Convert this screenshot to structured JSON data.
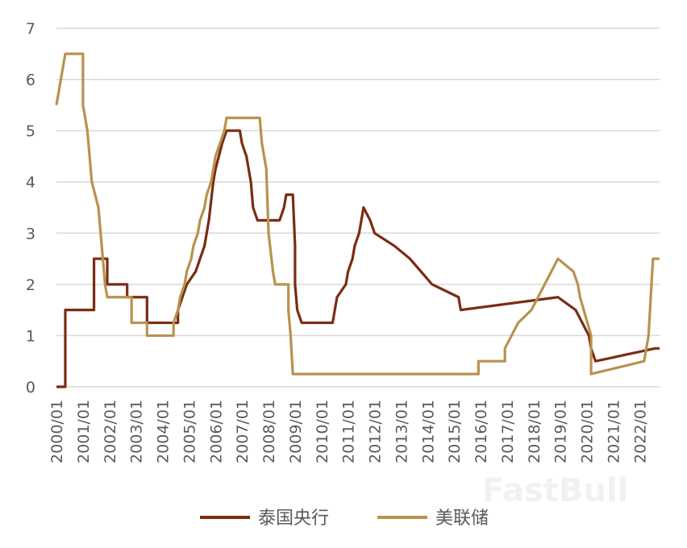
{
  "chart_data": {
    "type": "line",
    "title": "",
    "xlabel": "",
    "ylabel": "",
    "ylim": [
      0,
      7
    ],
    "y_ticks": [
      0,
      1,
      2,
      3,
      4,
      5,
      6,
      7
    ],
    "x_range": [
      "2000-01",
      "2022-10"
    ],
    "x_tick_labels": [
      "2000/01",
      "2001/01",
      "2002/01",
      "2003/01",
      "2004/01",
      "2005/01",
      "2006/01",
      "2007/01",
      "2008/01",
      "2009/01",
      "2010/01",
      "2011/01",
      "2012/01",
      "2013/01",
      "2014/01",
      "2015/01",
      "2016/01",
      "2017/01",
      "2018/01",
      "2019/01",
      "2020/01",
      "2021/01",
      "2022/01"
    ],
    "grid": "horizontal",
    "legend_position": "bottom",
    "series": [
      {
        "name": "泰国央行",
        "color": "#7b2c10",
        "points": [
          [
            "2000-01",
            0
          ],
          [
            "2000-05",
            0
          ],
          [
            "2000-05",
            1.5
          ],
          [
            "2001-06",
            1.5
          ],
          [
            "2001-06",
            2.5
          ],
          [
            "2001-12",
            2.5
          ],
          [
            "2001-12",
            2.0
          ],
          [
            "2002-09",
            2.0
          ],
          [
            "2002-09",
            1.75
          ],
          [
            "2003-06",
            1.75
          ],
          [
            "2003-06",
            1.25
          ],
          [
            "2004-08",
            1.25
          ],
          [
            "2004-08",
            1.5
          ],
          [
            "2004-10",
            1.75
          ],
          [
            "2004-12",
            2.0
          ],
          [
            "2005-04",
            2.25
          ],
          [
            "2005-06",
            2.5
          ],
          [
            "2005-08",
            2.75
          ],
          [
            "2005-10",
            3.25
          ],
          [
            "2005-12",
            4.0
          ],
          [
            "2006-01",
            4.25
          ],
          [
            "2006-04",
            4.75
          ],
          [
            "2006-06",
            5.0
          ],
          [
            "2006-12",
            5.0
          ],
          [
            "2007-01",
            4.75
          ],
          [
            "2007-03",
            4.5
          ],
          [
            "2007-05",
            4.0
          ],
          [
            "2007-06",
            3.5
          ],
          [
            "2007-08",
            3.25
          ],
          [
            "2008-06",
            3.25
          ],
          [
            "2008-08",
            3.5
          ],
          [
            "2008-09",
            3.75
          ],
          [
            "2008-12",
            3.75
          ],
          [
            "2009-01",
            2.75
          ],
          [
            "2009-01",
            2.0
          ],
          [
            "2009-02",
            1.5
          ],
          [
            "2009-04",
            1.25
          ],
          [
            "2010-06",
            1.25
          ],
          [
            "2010-07",
            1.5
          ],
          [
            "2010-08",
            1.75
          ],
          [
            "2010-12",
            2.0
          ],
          [
            "2011-01",
            2.25
          ],
          [
            "2011-03",
            2.5
          ],
          [
            "2011-04",
            2.75
          ],
          [
            "2011-06",
            3.0
          ],
          [
            "2011-08",
            3.5
          ],
          [
            "2011-11",
            3.25
          ],
          [
            "2012-01",
            3.0
          ],
          [
            "2012-10",
            2.75
          ],
          [
            "2013-05",
            2.5
          ],
          [
            "2013-10",
            2.25
          ],
          [
            "2014-03",
            2.0
          ],
          [
            "2015-03",
            1.75
          ],
          [
            "2015-04",
            1.5
          ],
          [
            "2018-12",
            1.75
          ],
          [
            "2019-08",
            1.5
          ],
          [
            "2019-11",
            1.25
          ],
          [
            "2020-02",
            1.0
          ],
          [
            "2020-03",
            0.75
          ],
          [
            "2020-05",
            0.5
          ],
          [
            "2022-08",
            0.75
          ],
          [
            "2022-10",
            0.75
          ]
        ]
      },
      {
        "name": "美联储",
        "color": "#b8924e",
        "points": [
          [
            "2000-01",
            5.5
          ],
          [
            "2000-02",
            5.75
          ],
          [
            "2000-03",
            6.0
          ],
          [
            "2000-05",
            6.5
          ],
          [
            "2001-01",
            6.5
          ],
          [
            "2001-01",
            5.5
          ],
          [
            "2001-03",
            5.0
          ],
          [
            "2001-05",
            4.0
          ],
          [
            "2001-08",
            3.5
          ],
          [
            "2001-10",
            2.5
          ],
          [
            "2001-11",
            2.0
          ],
          [
            "2001-12",
            1.75
          ],
          [
            "2002-11",
            1.75
          ],
          [
            "2002-11",
            1.25
          ],
          [
            "2003-06",
            1.25
          ],
          [
            "2003-06",
            1.0
          ],
          [
            "2004-06",
            1.0
          ],
          [
            "2004-06",
            1.25
          ],
          [
            "2004-08",
            1.5
          ],
          [
            "2004-09",
            1.75
          ],
          [
            "2004-11",
            2.0
          ],
          [
            "2004-12",
            2.25
          ],
          [
            "2005-02",
            2.5
          ],
          [
            "2005-03",
            2.75
          ],
          [
            "2005-05",
            3.0
          ],
          [
            "2005-06",
            3.25
          ],
          [
            "2005-08",
            3.5
          ],
          [
            "2005-09",
            3.75
          ],
          [
            "2005-11",
            4.0
          ],
          [
            "2005-12",
            4.25
          ],
          [
            "2006-01",
            4.5
          ],
          [
            "2006-03",
            4.75
          ],
          [
            "2006-05",
            5.0
          ],
          [
            "2006-06",
            5.25
          ],
          [
            "2007-09",
            5.25
          ],
          [
            "2007-10",
            4.75
          ],
          [
            "2007-12",
            4.25
          ],
          [
            "2008-01",
            3.0
          ],
          [
            "2008-03",
            2.25
          ],
          [
            "2008-04",
            2.0
          ],
          [
            "2008-10",
            2.0
          ],
          [
            "2008-10",
            1.5
          ],
          [
            "2008-11",
            1.0
          ],
          [
            "2008-12",
            0.25
          ],
          [
            "2015-12",
            0.25
          ],
          [
            "2015-12",
            0.5
          ],
          [
            "2016-12",
            0.5
          ],
          [
            "2016-12",
            0.75
          ],
          [
            "2017-03",
            1.0
          ],
          [
            "2017-06",
            1.25
          ],
          [
            "2017-12",
            1.5
          ],
          [
            "2018-03",
            1.75
          ],
          [
            "2018-06",
            2.0
          ],
          [
            "2018-09",
            2.25
          ],
          [
            "2018-12",
            2.5
          ],
          [
            "2019-07",
            2.25
          ],
          [
            "2019-09",
            2.0
          ],
          [
            "2019-10",
            1.75
          ],
          [
            "2020-03",
            1.0
          ],
          [
            "2020-03",
            0.25
          ],
          [
            "2022-03",
            0.5
          ],
          [
            "2022-05",
            1.0
          ],
          [
            "2022-06",
            1.75
          ],
          [
            "2022-07",
            2.5
          ],
          [
            "2022-10",
            2.5
          ]
        ]
      }
    ]
  },
  "watermark": "FastBull"
}
